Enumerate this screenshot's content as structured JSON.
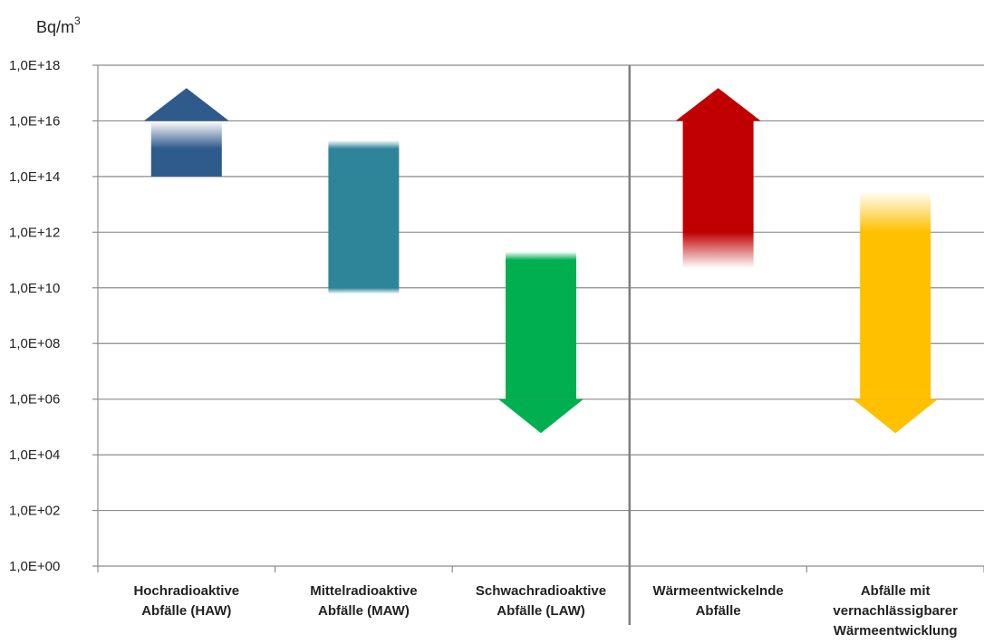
{
  "chart_data": {
    "type": "range-arrows",
    "y_unit": "Bq/m",
    "y_unit_superscript": "3",
    "yscale": "log10",
    "ylim": [
      1,
      1e+18
    ],
    "yticks": [
      {
        "value": 1e+18,
        "label": "1,0E+18"
      },
      {
        "value": 1e+16,
        "label": "1,0E+16"
      },
      {
        "value": 100000000000000.0,
        "label": "1,0E+14"
      },
      {
        "value": 1000000000000.0,
        "label": "1,0E+12"
      },
      {
        "value": 10000000000.0,
        "label": "1,0E+10"
      },
      {
        "value": 100000000.0,
        "label": "1,0E+08"
      },
      {
        "value": 1000000.0,
        "label": "1,0E+06"
      },
      {
        "value": 10000.0,
        "label": "1,0E+04"
      },
      {
        "value": 100.0,
        "label": "1,0E+02"
      },
      {
        "value": 1,
        "label": "1,0E+00"
      }
    ],
    "grid": true,
    "categories": [
      {
        "lines": [
          "Hochradioaktive",
          "Abfälle (HAW)"
        ],
        "low": 100000000000000.0,
        "high": 1e+16,
        "fade_low": 100000000000000.0,
        "fade_high": 1000000000000000.0,
        "arrow_dir": "up",
        "arrow_tip": 1.5e+17,
        "color": "#2F5A8C"
      },
      {
        "lines": [
          "Mittelradioaktive",
          "Abfälle (MAW)"
        ],
        "low": 6000000000.0,
        "high": 2000000000000000.0,
        "fade_low": 10000000000.0,
        "fade_high": 1000000000000000.0,
        "arrow_dir": "none",
        "color": "#2E8599"
      },
      {
        "lines": [
          "Schwachradioaktive",
          "Abfälle (LAW)"
        ],
        "low": 1000000.0,
        "high": 200000000000.0,
        "fade_low": 1000000.0,
        "fade_high": 100000000000.0,
        "arrow_dir": "down",
        "arrow_tip": 60000.0,
        "color": "#00B050"
      },
      {
        "lines": [
          "Wärmeentwickelnde",
          "Abfälle"
        ],
        "low": 50000000000.0,
        "high": 1e+16,
        "fade_low": 1000000000000.0,
        "fade_high": 1e+16,
        "arrow_dir": "up",
        "arrow_tip": 1.5e+17,
        "color": "#C00000"
      },
      {
        "lines": [
          "Abfälle mit",
          "vernachlässigbarer",
          "Wärmeentwicklung"
        ],
        "low": 1000000.0,
        "high": 30000000000000.0,
        "fade_low": 1000000.0,
        "fade_high": 1000000000000.0,
        "arrow_dir": "down",
        "arrow_tip": 60000.0,
        "color": "#FFC000"
      }
    ],
    "separator_after_index": 2
  }
}
